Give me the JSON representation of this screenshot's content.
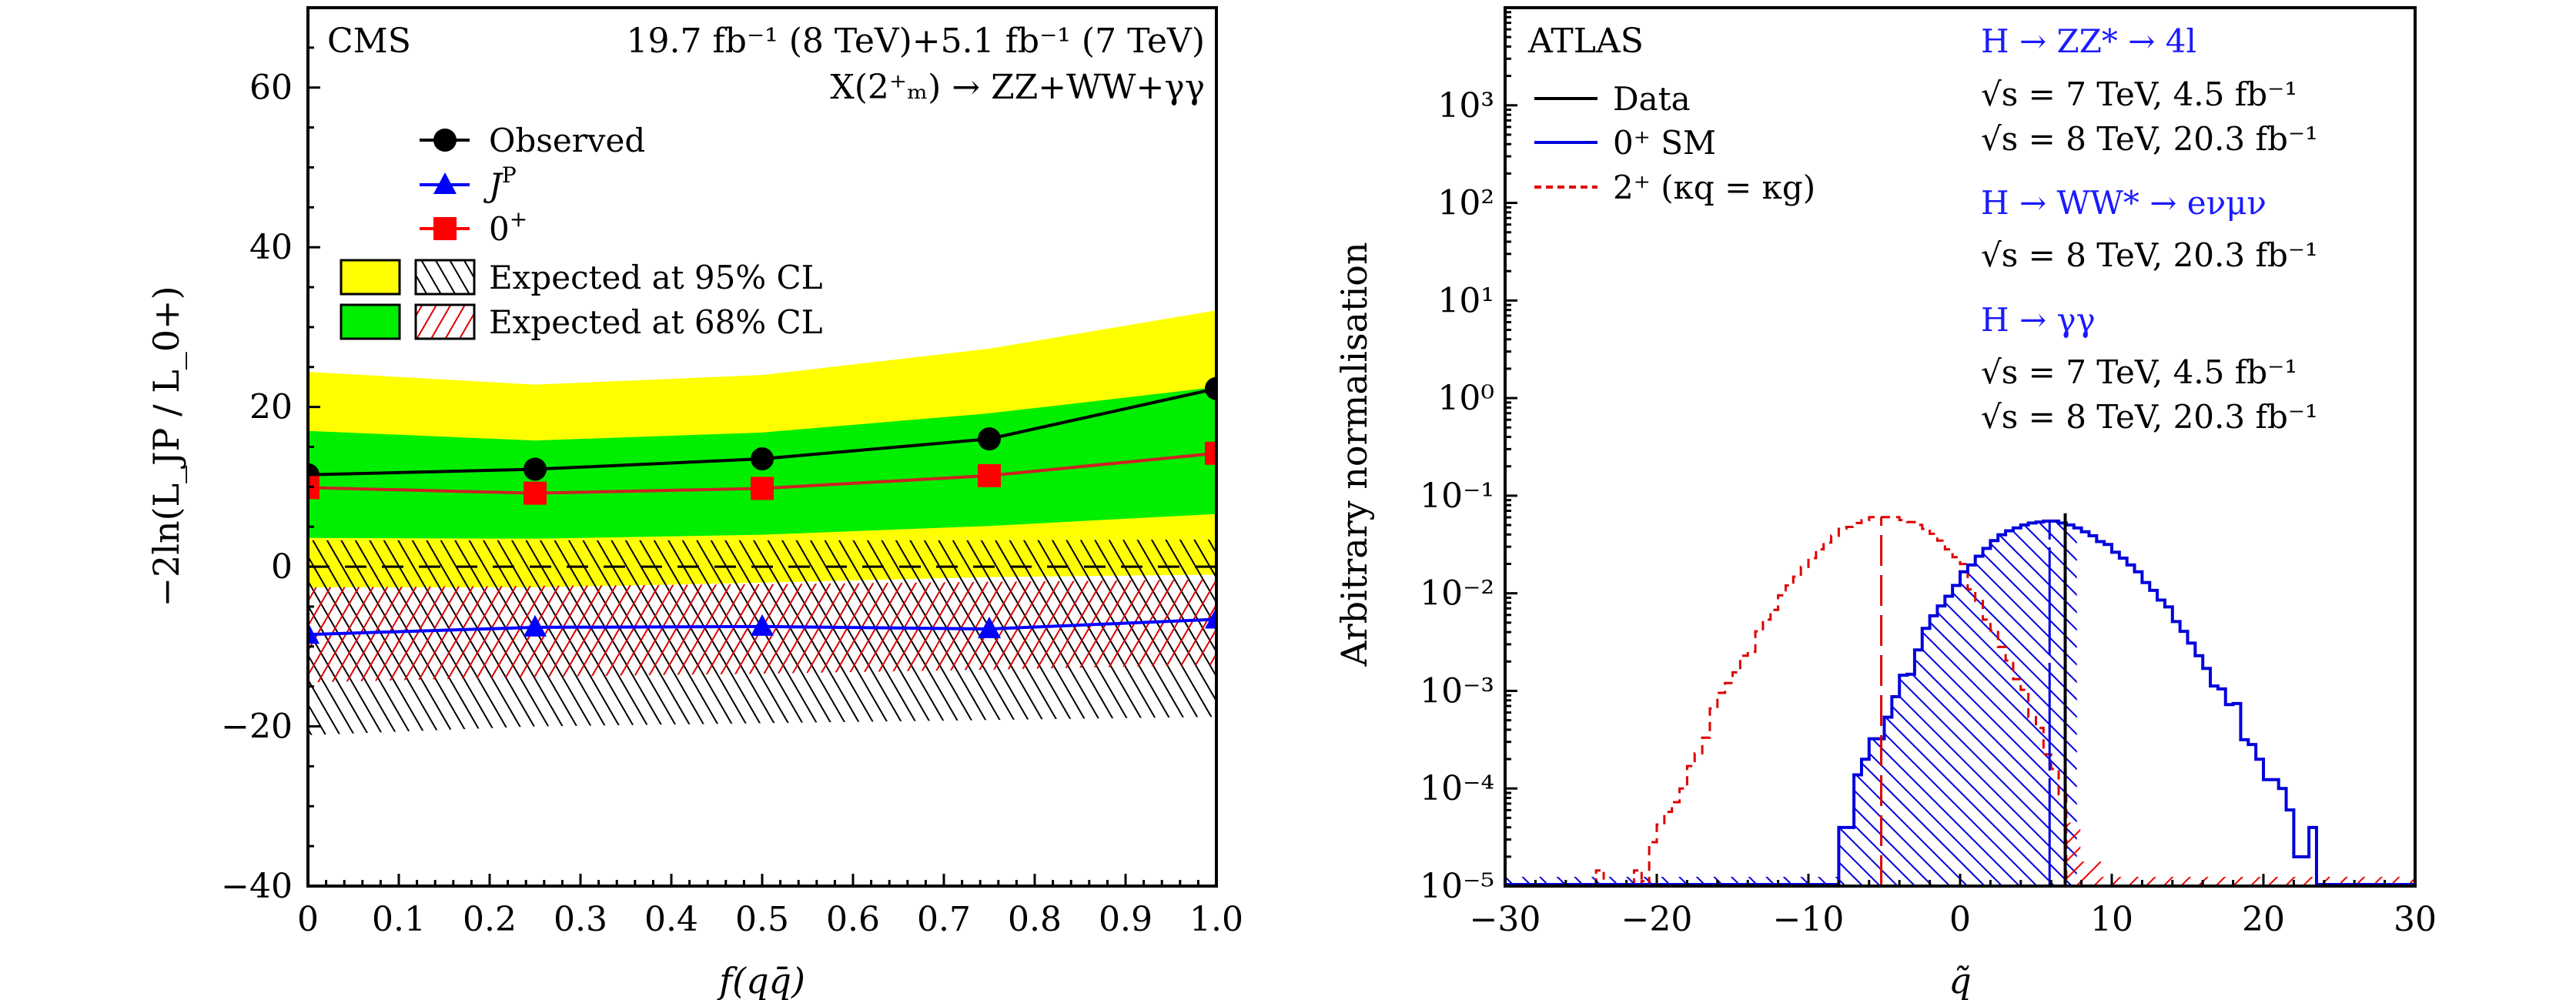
{
  "chart_data": [
    {
      "id": "cms",
      "type": "line",
      "experiment_label": "CMS",
      "lumi_label": "19.7 fb⁻¹ (8 TeV)+5.1 fb⁻¹ (7 TeV)",
      "process_label": "X(2⁺ₘ) → ZZ+WW+γγ",
      "xlabel": "f(qq̄)",
      "ylabel": "−2ln(L_JP / L_0+)",
      "xlim": [
        0,
        1.0
      ],
      "ylim": [
        -40,
        70
      ],
      "xticks": [
        0,
        0.1,
        0.2,
        0.3,
        0.4,
        0.5,
        0.6,
        0.7,
        0.8,
        0.9,
        1.0
      ],
      "xtick_labels": [
        "0",
        "0.1",
        "0.2",
        "0.3",
        "0.4",
        "0.5",
        "0.6",
        "0.7",
        "0.8",
        "0.9",
        "1.0"
      ],
      "yticks": [
        -40,
        -20,
        0,
        20,
        40,
        60
      ],
      "ytick_labels": [
        "−40",
        "−20",
        "0",
        "20",
        "40",
        "60"
      ],
      "x": [
        0,
        0.25,
        0.5,
        0.75,
        1.0
      ],
      "series": [
        {
          "name": "Observed",
          "color": "#000000",
          "marker": "circle",
          "values": [
            11.5,
            12.2,
            13.5,
            16.0,
            22.3
          ]
        },
        {
          "name": "JP",
          "color": "#0000ff",
          "marker": "triangle",
          "values": [
            -8.5,
            -7.6,
            -7.5,
            -7.8,
            -6.6
          ]
        },
        {
          "name": "0+",
          "color": "#ff0000",
          "line_color": "#cc2222",
          "marker": "square",
          "values": [
            9.9,
            9.2,
            9.8,
            11.4,
            14.2
          ]
        }
      ],
      "bands": {
        "zeroplus_95": {
          "color": "#ffff00",
          "upper": [
            24.4,
            22.8,
            24.0,
            27.3,
            32.1
          ],
          "lower": [
            -2.6,
            -2.6,
            -2.0,
            -1.3,
            -1.0
          ]
        },
        "zeroplus_68": {
          "color": "#00ee00",
          "upper": [
            17.0,
            15.8,
            16.8,
            19.2,
            22.5
          ],
          "lower": [
            3.6,
            3.5,
            4.0,
            5.1,
            6.6
          ]
        },
        "jp_95_hatch": {
          "color": "#000000",
          "upper": [
            3.3,
            3.3,
            3.3,
            3.3,
            3.4
          ],
          "lower": [
            -21.1,
            -20.0,
            -19.6,
            -19.2,
            -18.8
          ]
        },
        "jp_68_hatch": {
          "color": "#dd0000",
          "upper": [
            -2.6,
            -2.4,
            -2.2,
            -1.9,
            -1.6
          ],
          "lower": [
            -14.5,
            -13.8,
            -13.4,
            -12.9,
            -12.3
          ]
        }
      },
      "reference_line": {
        "y": 0,
        "style": "dashed"
      },
      "legend": [
        {
          "label": "Observed",
          "kind": "circle",
          "color": "#000000"
        },
        {
          "label": "J",
          "sup": "P",
          "kind": "triangle",
          "color": "#0000ff"
        },
        {
          "label": "0",
          "sup": "+",
          "kind": "square",
          "color": "#ff0000"
        },
        {
          "label": "Expected at 95% CL",
          "kind": "bands",
          "fill": "#ffff00",
          "hatch": "#000000"
        },
        {
          "label": "Expected at 68% CL",
          "kind": "bands",
          "fill": "#00ee00",
          "hatch": "#dd0000"
        }
      ],
      "legend_position": "top-left",
      "grid": false
    },
    {
      "id": "atlas",
      "type": "histogram",
      "experiment_label": "ATLAS",
      "xlabel": "q̃",
      "ylabel": "Arbitrary normalisation",
      "xlim": [
        -30,
        30
      ],
      "ylim": [
        1e-05,
        10000.0
      ],
      "yscale": "log",
      "xticks": [
        -30,
        -20,
        -10,
        0,
        10,
        20,
        30
      ],
      "xtick_labels": [
        "−30",
        "−20",
        "−10",
        "0",
        "10",
        "20",
        "30"
      ],
      "yticks_exp": [
        -5,
        -4,
        -3,
        -2,
        -1,
        0,
        1,
        2,
        3
      ],
      "ytick_labels": [
        "10⁻⁵",
        "10⁻⁴",
        "10⁻³",
        "10⁻²",
        "10⁻¹",
        "10⁰",
        "10¹",
        "10²",
        "10³"
      ],
      "bin_width": 0.5,
      "series": [
        {
          "name": "0+ SM",
          "color": "#0000dd",
          "style": "solid",
          "bin_start": -8.0,
          "log10_values": [
            -4.4,
            -4.4,
            -3.86,
            -3.7,
            -3.49,
            -3.49,
            -3.27,
            -3.06,
            -2.84,
            -2.83,
            -2.58,
            -2.36,
            -2.23,
            -2.13,
            -2.03,
            -1.92,
            -1.78,
            -1.71,
            -1.62,
            -1.54,
            -1.46,
            -1.4,
            -1.36,
            -1.33,
            -1.3,
            -1.28,
            -1.27,
            -1.26,
            -1.26,
            -1.28,
            -1.3,
            -1.33,
            -1.37,
            -1.41,
            -1.47,
            -1.5,
            -1.58,
            -1.64,
            -1.71,
            -1.78,
            -1.89,
            -1.97,
            -2.07,
            -2.14,
            -2.29,
            -2.39,
            -2.51,
            -2.64,
            -2.77,
            -2.95,
            -2.98,
            -3.14,
            -3.13,
            -3.5,
            -3.55,
            -3.7,
            -3.91,
            -3.91,
            -4.0,
            -4.22,
            -4.7,
            -4.7,
            -4.4
          ]
        },
        {
          "name": "2+ (κq = κg)",
          "color": "#dd0000",
          "style": "dashed",
          "bin_start": -20.5,
          "log10_values": [
            -4.55,
            -4.37,
            -4.24,
            -4.14,
            -4.0,
            -3.77,
            -3.64,
            -3.48,
            -3.18,
            -3.02,
            -2.92,
            -2.81,
            -2.64,
            -2.6,
            -2.39,
            -2.27,
            -2.17,
            -2.02,
            -1.92,
            -1.83,
            -1.73,
            -1.64,
            -1.55,
            -1.48,
            -1.41,
            -1.34,
            -1.32,
            -1.28,
            -1.25,
            -1.22,
            -1.22,
            -1.22,
            -1.22,
            -1.25,
            -1.27,
            -1.3,
            -1.34,
            -1.39,
            -1.46,
            -1.55,
            -1.63,
            -1.7,
            -1.96,
            -2.08,
            -2.27,
            -2.38,
            -2.55,
            -2.69,
            -2.88,
            -2.99,
            -3.27,
            -3.38,
            -3.65,
            -3.8,
            -4.06
          ]
        }
      ],
      "isolated_bins_2plus": [
        {
          "q": -24.0,
          "log10_value": -4.84
        },
        {
          "q": -21.5,
          "log10_value": -4.84
        },
        {
          "q": -21.0,
          "log10_value": -4.95
        }
      ],
      "data_value": 6.93,
      "median_0plus": 5.9,
      "median_2plus": -5.2,
      "hatch_0plus_range": [
        -8.0,
        7.7
      ],
      "hatch_2plus_range": [
        6.93,
        9.3
      ],
      "legend": [
        {
          "label": "Data",
          "color": "#000000",
          "style": "solid"
        },
        {
          "label": "0⁺ SM",
          "color": "#0000dd",
          "style": "solid"
        },
        {
          "label": "2⁺ (κq = κg)",
          "color": "#dd0000",
          "style": "dashed"
        }
      ],
      "legend_position": "top-left",
      "annotations": [
        {
          "text": "H → ZZ* → 4l",
          "color": "#1a1aff"
        },
        {
          "text": "√s = 7 TeV, 4.5 fb⁻¹",
          "color": "#000000"
        },
        {
          "text": "√s = 8 TeV, 20.3 fb⁻¹",
          "color": "#000000"
        },
        {
          "text": "H → WW* → eνμν",
          "color": "#1a1aff"
        },
        {
          "text": "√s = 8 TeV, 20.3 fb⁻¹",
          "color": "#000000"
        },
        {
          "text": "H → γγ",
          "color": "#1a1aff"
        },
        {
          "text": "√s = 7 TeV, 4.5 fb⁻¹",
          "color": "#000000"
        },
        {
          "text": "√s = 8 TeV, 20.3 fb⁻¹",
          "color": "#000000"
        }
      ],
      "grid": false
    }
  ]
}
